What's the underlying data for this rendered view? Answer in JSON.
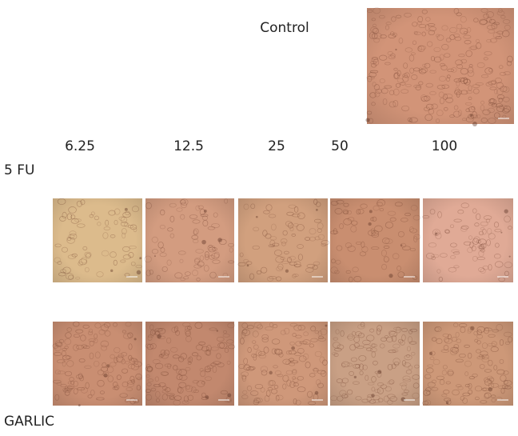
{
  "control": {
    "label": "Control"
  },
  "concentrations": [
    "6.25",
    "12.5",
    "25",
    "50",
    "100"
  ],
  "rows": [
    {
      "label": "5 FU"
    },
    {
      "label": "GARLIC"
    }
  ]
}
